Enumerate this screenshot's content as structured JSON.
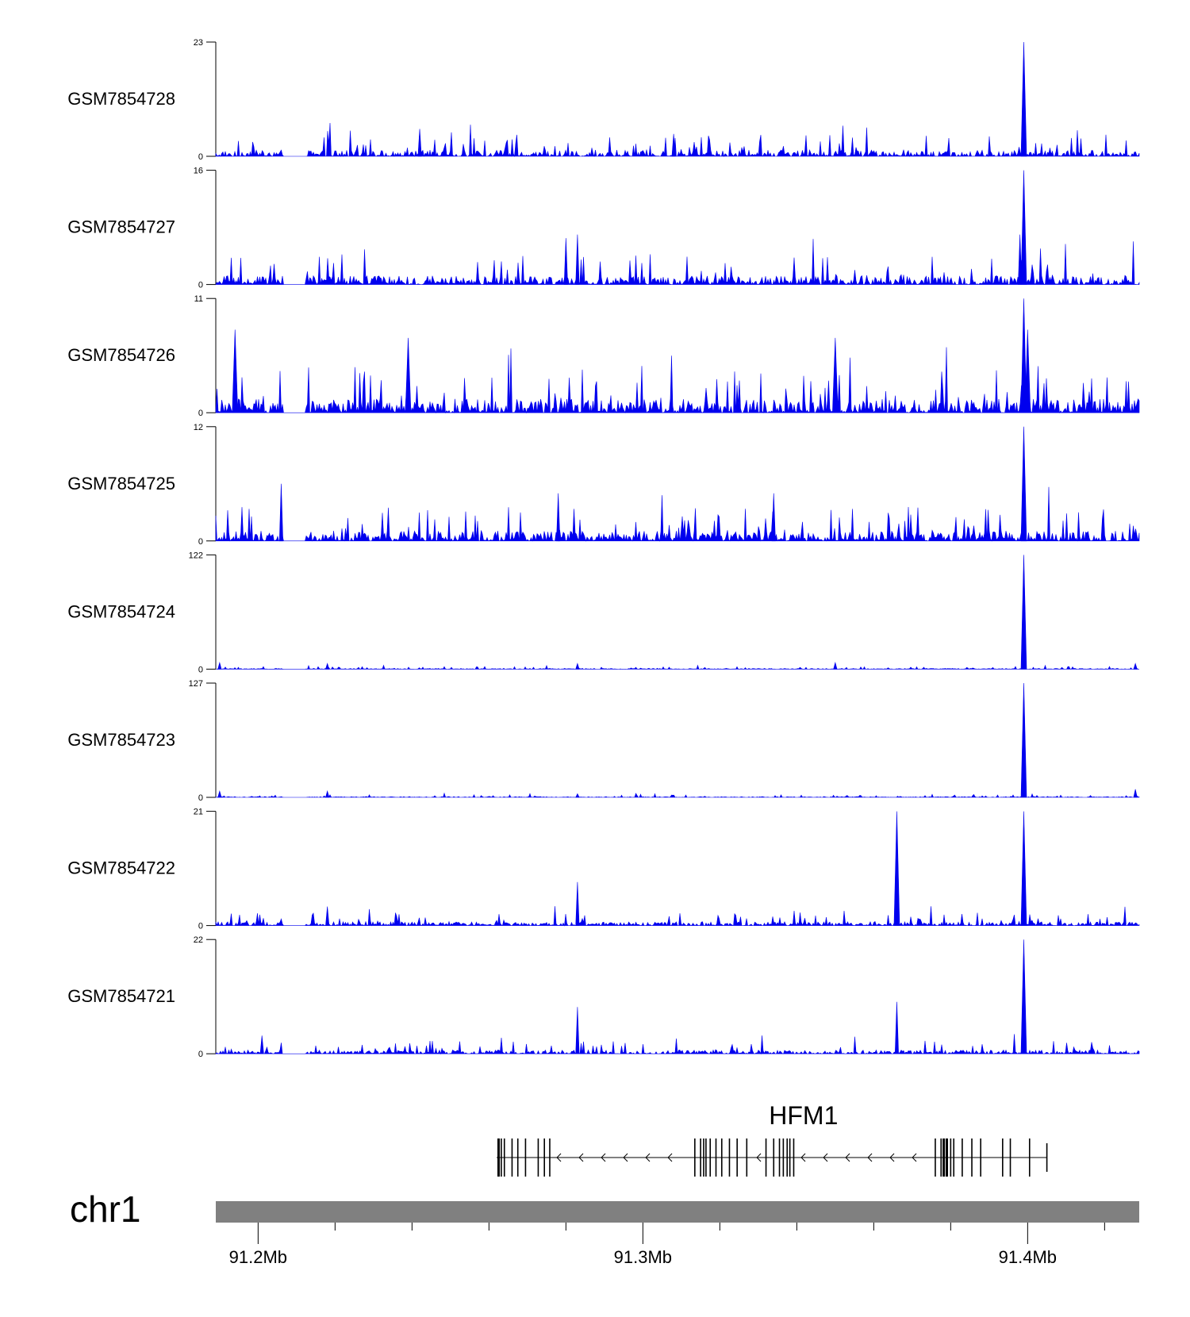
{
  "chart_data": {
    "type": "area",
    "title": "",
    "xlabel": "",
    "ylabel": "",
    "x_range_mb": [
      91.189,
      91.429
    ],
    "series_color": "#0000ee",
    "tracks": [
      {
        "name": "GSM7854728",
        "ymax": 23,
        "ymin": 0,
        "baseline": 0.1,
        "peaks": [
          {
            "mb": 91.399,
            "value": 23
          },
          {
            "mb": 91.242,
            "value": 5.5
          },
          {
            "mb": 91.308,
            "value": 4.5
          }
        ]
      },
      {
        "name": "GSM7854727",
        "ymax": 16,
        "ymin": 0,
        "baseline": 0.14,
        "peaks": [
          {
            "mb": 91.399,
            "value": 16
          },
          {
            "mb": 91.283,
            "value": 7
          },
          {
            "mb": 91.28,
            "value": 6.5
          },
          {
            "mb": 91.398,
            "value": 7
          }
        ]
      },
      {
        "name": "GSM7854726",
        "ymax": 11,
        "ymin": 0,
        "baseline": 0.22,
        "peaks": [
          {
            "mb": 91.399,
            "value": 11
          },
          {
            "mb": 91.4,
            "value": 8
          },
          {
            "mb": 91.194,
            "value": 8
          },
          {
            "mb": 91.239,
            "value": 7.2
          },
          {
            "mb": 91.35,
            "value": 7.2
          }
        ]
      },
      {
        "name": "GSM7854725",
        "ymax": 12,
        "ymin": 0,
        "baseline": 0.16,
        "peaks": [
          {
            "mb": 91.399,
            "value": 12
          },
          {
            "mb": 91.206,
            "value": 6
          },
          {
            "mb": 91.334,
            "value": 5
          },
          {
            "mb": 91.278,
            "value": 5
          }
        ]
      },
      {
        "name": "GSM7854724",
        "ymax": 122,
        "ymin": 0,
        "baseline": 0.012,
        "peaks": [
          {
            "mb": 91.399,
            "value": 122
          },
          {
            "mb": 91.218,
            "value": 6
          },
          {
            "mb": 91.283,
            "value": 6
          },
          {
            "mb": 91.35,
            "value": 7
          },
          {
            "mb": 91.19,
            "value": 7
          },
          {
            "mb": 91.428,
            "value": 6
          }
        ]
      },
      {
        "name": "GSM7854723",
        "ymax": 127,
        "ymin": 0,
        "baseline": 0.012,
        "peaks": [
          {
            "mb": 91.399,
            "value": 127
          },
          {
            "mb": 91.218,
            "value": 7
          },
          {
            "mb": 91.283,
            "value": 4
          },
          {
            "mb": 91.19,
            "value": 7
          },
          {
            "mb": 91.428,
            "value": 9
          }
        ]
      },
      {
        "name": "GSM7854722",
        "ymax": 21,
        "ymin": 0,
        "baseline": 0.06,
        "peaks": [
          {
            "mb": 91.399,
            "value": 21
          },
          {
            "mb": 91.366,
            "value": 21
          },
          {
            "mb": 91.283,
            "value": 8
          },
          {
            "mb": 91.218,
            "value": 3.5
          }
        ]
      },
      {
        "name": "GSM7854721",
        "ymax": 22,
        "ymin": 0,
        "baseline": 0.06,
        "peaks": [
          {
            "mb": 91.399,
            "value": 22
          },
          {
            "mb": 91.366,
            "value": 10
          },
          {
            "mb": 91.283,
            "value": 9
          },
          {
            "mb": 91.201,
            "value": 3.5
          }
        ]
      }
    ],
    "gene": {
      "name": "HFM1",
      "strand": "-",
      "start_mb": 91.262,
      "end_mb": 91.405,
      "exons_mb": [
        91.2625,
        91.2632,
        91.264,
        91.266,
        91.2675,
        91.2695,
        91.2728,
        91.2744,
        91.2758,
        91.3135,
        91.315,
        91.3158,
        91.3164,
        91.3175,
        91.319,
        91.3205,
        91.3225,
        91.3245,
        91.327,
        91.332,
        91.334,
        91.3355,
        91.3365,
        91.3375,
        91.3382,
        91.3392,
        91.376,
        91.3775,
        91.3782,
        91.379,
        91.38,
        91.3808,
        91.383,
        91.3855,
        91.3878,
        91.3935,
        91.3955,
        91.4005,
        91.405
      ]
    },
    "axis": {
      "chromosome": "chr1",
      "ticks_mb": [
        91.2,
        91.3,
        91.4
      ],
      "tick_labels": [
        "91.2Mb",
        "91.3Mb",
        "91.4Mb"
      ],
      "minor_ticks_mb": [
        91.22,
        91.24,
        91.26,
        91.28,
        91.32,
        91.34,
        91.36,
        91.38,
        91.42
      ]
    }
  }
}
